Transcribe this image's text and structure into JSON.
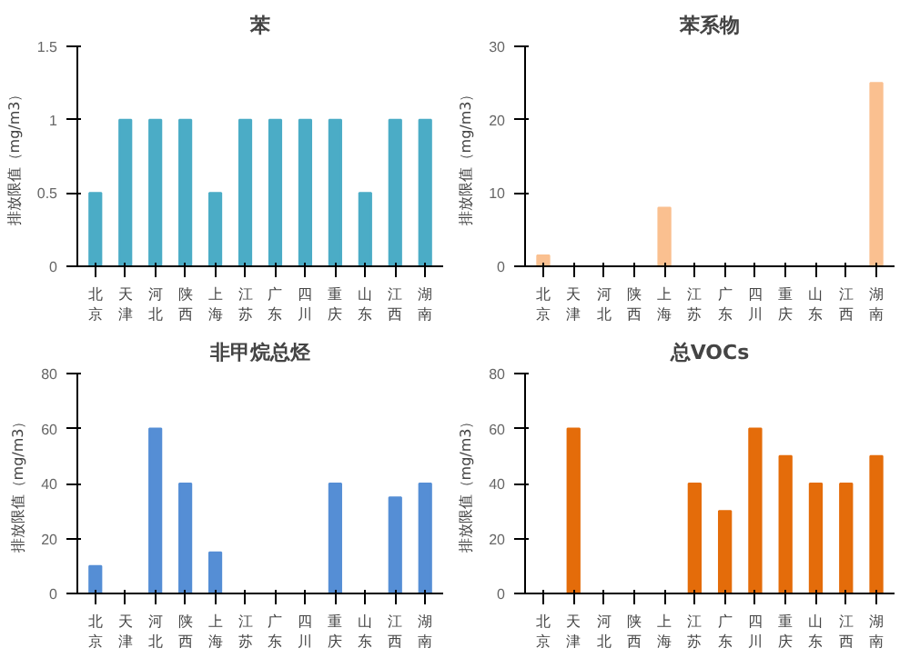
{
  "chart_data": [
    {
      "type": "bar",
      "title": "苯",
      "ylabel": "排放限值（mg/m3）",
      "categories": [
        "北京",
        "天津",
        "河北",
        "陕西",
        "上海",
        "江苏",
        "广东",
        "四川",
        "重庆",
        "山东",
        "江西",
        "湖南"
      ],
      "values": [
        0.5,
        1,
        1,
        1,
        0.5,
        1,
        1,
        1,
        1,
        0.5,
        1,
        1
      ],
      "color": "#4bacc6",
      "ylim": [
        0,
        1.5
      ],
      "yticks": [
        0,
        0.5,
        1,
        1.5
      ],
      "grid": false
    },
    {
      "type": "bar",
      "title": "苯系物",
      "ylabel": "排放限值（mg/m3）",
      "categories": [
        "北京",
        "天津",
        "河北",
        "陕西",
        "上海",
        "江苏",
        "广东",
        "四川",
        "重庆",
        "山东",
        "江西",
        "湖南"
      ],
      "values": [
        1.5,
        null,
        null,
        null,
        8,
        null,
        null,
        null,
        null,
        null,
        null,
        25
      ],
      "color": "#fac090",
      "ylim": [
        0,
        30
      ],
      "yticks": [
        0,
        10,
        20,
        30
      ],
      "grid": false
    },
    {
      "type": "bar",
      "title": "非甲烷总烃",
      "ylabel": "排放限值（mg/m3）",
      "categories": [
        "北京",
        "天津",
        "河北",
        "陕西",
        "上海",
        "江苏",
        "广东",
        "四川",
        "重庆",
        "山东",
        "江西",
        "湖南"
      ],
      "values": [
        10,
        null,
        60,
        40,
        15,
        null,
        null,
        null,
        40,
        null,
        35,
        40
      ],
      "color": "#558ed5",
      "ylim": [
        0,
        80
      ],
      "yticks": [
        0,
        20,
        40,
        60,
        80
      ],
      "grid": false
    },
    {
      "type": "bar",
      "title": "总VOCs",
      "ylabel": "排放限值（mg/m3）",
      "categories": [
        "北京",
        "天津",
        "河北",
        "陕西",
        "上海",
        "江苏",
        "广东",
        "四川",
        "重庆",
        "山东",
        "江西",
        "湖南"
      ],
      "values": [
        null,
        60,
        null,
        null,
        null,
        40,
        30,
        60,
        50,
        40,
        40,
        50
      ],
      "color": "#e46c0a",
      "ylim": [
        0,
        80
      ],
      "yticks": [
        0,
        20,
        40,
        60,
        80
      ],
      "grid": false
    }
  ]
}
